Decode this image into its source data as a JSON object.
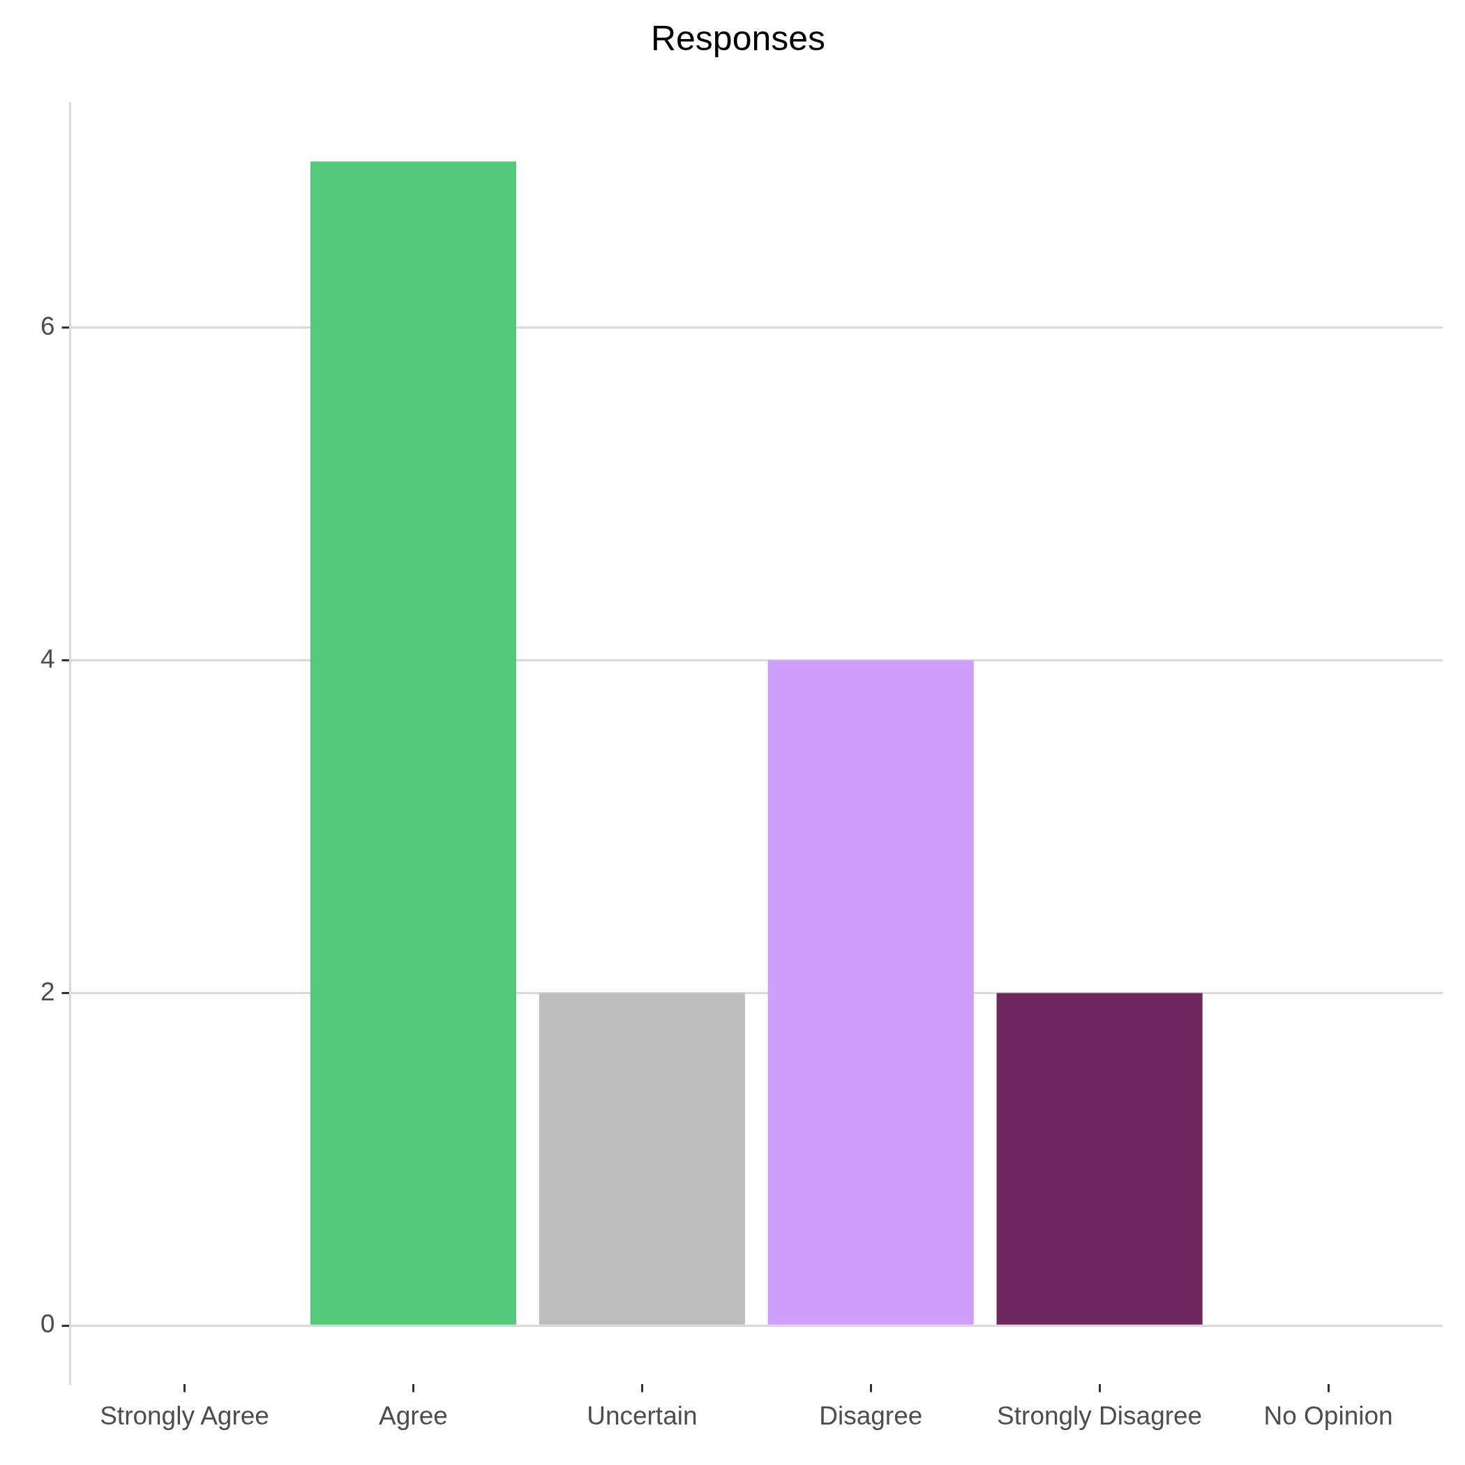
{
  "chart_data": {
    "type": "bar",
    "title": "Responses",
    "categories": [
      "Strongly Agree",
      "Agree",
      "Uncertain",
      "Disagree",
      "Strongly Disagree",
      "No Opinion"
    ],
    "values": [
      0,
      7,
      2,
      4,
      2,
      0
    ],
    "colors": [
      "#1a9850",
      "#52c878",
      "#bdbdbd",
      "#cf9dfd",
      "#6f275f",
      "#808080"
    ],
    "ylim": [
      -0.35,
      7.35
    ],
    "yticks": [
      0,
      2,
      4,
      6
    ],
    "grid": "y",
    "legend": false
  }
}
